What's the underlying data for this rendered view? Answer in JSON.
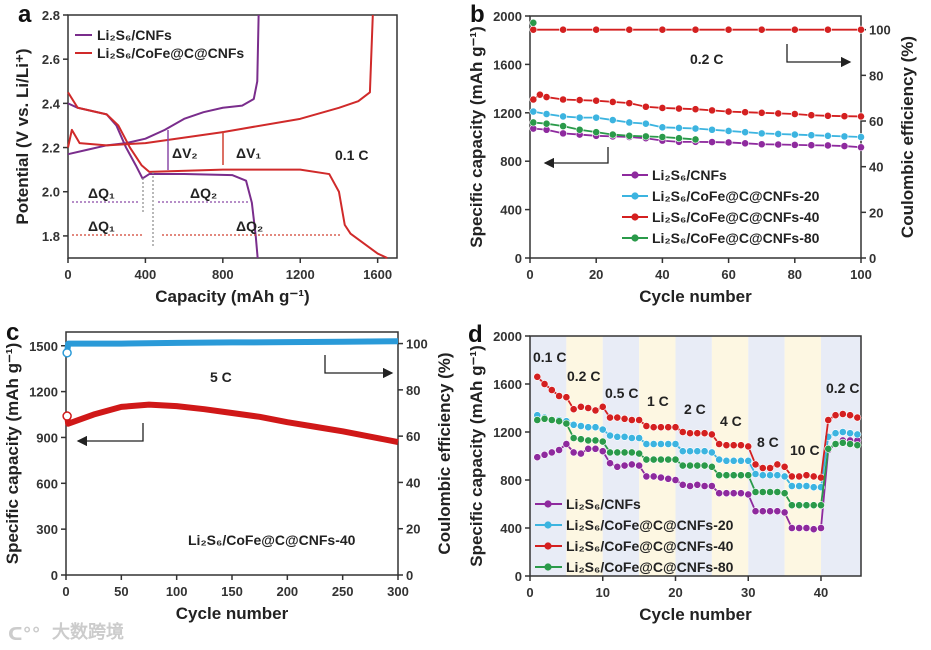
{
  "watermark": "大数跨境",
  "chart_data": [
    {
      "panel": "a",
      "type": "line",
      "xlabel": "Capacity (mAh g⁻¹)",
      "ylabel": "Potential (V vs. Li/Li⁺)",
      "xlim": [
        0,
        1700
      ],
      "ylim": [
        1.7,
        2.8
      ],
      "xticks": [
        0,
        400,
        800,
        1200,
        1600
      ],
      "xticklabels": [
        "0",
        "400",
        "800",
        "1200",
        "1600"
      ],
      "yticks": [
        1.8,
        2.0,
        2.2,
        2.4,
        2.6,
        2.8
      ],
      "yticklabels": [
        "1.8",
        "2.0",
        "2.2",
        "2.4",
        "2.6",
        "2.8"
      ],
      "legend": [
        "Li₂S₆/CNFs",
        "Li₂S₆/CoFe@C@CNFs"
      ],
      "annotations": [
        "ΔV₂",
        "ΔV₁",
        "0.1 C",
        "ΔQ₁",
        "ΔQ₂",
        "ΔQ₁",
        "ΔQ₂"
      ],
      "series": [
        {
          "name": "Li₂S₆/CNFs charge",
          "color": "#7a2d8c",
          "x": [
            0,
            100,
            200,
            300,
            400,
            500,
            600,
            700,
            800,
            900,
            960,
            978,
            985
          ],
          "y": [
            2.17,
            2.19,
            2.21,
            2.22,
            2.24,
            2.28,
            2.33,
            2.36,
            2.38,
            2.39,
            2.42,
            2.5,
            2.8
          ]
        },
        {
          "name": "Li₂S₆/CNFs discharge",
          "color": "#7a2d8c",
          "x": [
            0,
            50,
            200,
            250,
            300,
            350,
            385,
            420,
            600,
            850,
            920,
            950,
            970,
            980
          ],
          "y": [
            2.4,
            2.38,
            2.35,
            2.3,
            2.2,
            2.12,
            2.06,
            2.08,
            2.08,
            2.075,
            2.05,
            1.95,
            1.8,
            1.7
          ]
        },
        {
          "name": "Li₂S₆/CoFe@C@CNFs charge",
          "color": "#d02a2a",
          "x": [
            0,
            20,
            60,
            200,
            400,
            800,
            1200,
            1400,
            1500,
            1560,
            1575
          ],
          "y": [
            2.2,
            2.28,
            2.22,
            2.21,
            2.22,
            2.27,
            2.33,
            2.38,
            2.41,
            2.45,
            2.8
          ]
        },
        {
          "name": "Li₂S₆/CoFe@C@CNFs discharge",
          "color": "#d02a2a",
          "x": [
            0,
            50,
            200,
            260,
            320,
            380,
            420,
            800,
            1200,
            1350,
            1400,
            1430,
            1460,
            1600,
            1650
          ],
          "y": [
            2.45,
            2.38,
            2.35,
            2.3,
            2.2,
            2.12,
            2.09,
            2.1,
            2.1,
            2.08,
            2.0,
            1.85,
            1.81,
            1.72,
            1.7
          ]
        }
      ]
    },
    {
      "panel": "b",
      "type": "line",
      "xlabel": "Cycle number",
      "ylabel": "Specific capacity (mAh g⁻¹)",
      "y2label": "Coulombic efficiency (%)",
      "xlim": [
        0,
        100
      ],
      "ylim": [
        0,
        2000
      ],
      "y2lim": [
        0,
        106
      ],
      "xticks": [
        0,
        20,
        40,
        60,
        80,
        100
      ],
      "xticklabels": [
        "0",
        "20",
        "40",
        "60",
        "80",
        "100"
      ],
      "yticks": [
        0,
        400,
        800,
        1200,
        1600,
        2000
      ],
      "yticklabels": [
        "0",
        "400",
        "800",
        "1200",
        "1600",
        "2000"
      ],
      "y2ticks": [
        0,
        20,
        40,
        60,
        80,
        100
      ],
      "y2ticklabels": [
        "0",
        "20",
        "40",
        "60",
        "80",
        "100"
      ],
      "annotations": [
        "0.2 C"
      ],
      "series": [
        {
          "name": "Li₂S₆/CNFs",
          "color": "#8e2a9e",
          "axis": "left",
          "x": [
            1,
            5,
            10,
            15,
            20,
            25,
            30,
            35,
            40,
            45,
            50,
            55,
            60,
            65,
            70,
            75,
            80,
            85,
            90,
            95,
            100
          ],
          "y": [
            1070,
            1060,
            1030,
            1020,
            1010,
            1005,
            1000,
            990,
            970,
            960,
            960,
            958,
            955,
            948,
            940,
            938,
            935,
            932,
            930,
            925,
            915
          ]
        },
        {
          "name": "Li₂S₆/CoFe@C@CNFs-20",
          "color": "#3cb4e0",
          "axis": "left",
          "x": [
            1,
            5,
            10,
            15,
            20,
            25,
            30,
            35,
            40,
            45,
            50,
            55,
            60,
            65,
            70,
            75,
            80,
            85,
            90,
            95,
            100
          ],
          "y": [
            1210,
            1190,
            1170,
            1160,
            1160,
            1140,
            1120,
            1110,
            1080,
            1075,
            1070,
            1060,
            1050,
            1040,
            1030,
            1025,
            1020,
            1015,
            1010,
            1005,
            1000
          ]
        },
        {
          "name": "Li₂S₆/CoFe@C@CNFs-40",
          "color": "#d42020",
          "axis": "left",
          "x": [
            1,
            3,
            5,
            10,
            15,
            20,
            25,
            30,
            35,
            40,
            45,
            50,
            55,
            60,
            65,
            70,
            75,
            80,
            85,
            90,
            95,
            100
          ],
          "y": [
            1310,
            1350,
            1330,
            1310,
            1305,
            1300,
            1290,
            1280,
            1250,
            1240,
            1235,
            1230,
            1220,
            1210,
            1205,
            1200,
            1195,
            1190,
            1180,
            1175,
            1172,
            1170
          ]
        },
        {
          "name": "Li₂S₆/CoFe@C@CNFs-80",
          "color": "#2a9a4a",
          "axis": "left",
          "x": [
            1,
            5,
            10,
            15,
            20,
            25,
            30,
            35,
            40,
            45,
            50
          ],
          "y": [
            1120,
            1110,
            1090,
            1060,
            1040,
            1020,
            1010,
            1005,
            1000,
            990,
            980
          ]
        },
        {
          "name": "CE",
          "color": "#d42020",
          "axis": "right",
          "x": [
            1,
            10,
            20,
            30,
            40,
            50,
            60,
            70,
            80,
            90,
            100
          ],
          "y": [
            100,
            100,
            100,
            100,
            100,
            100,
            100,
            100,
            100,
            100,
            100
          ]
        },
        {
          "name": "CE-80 first",
          "color": "#2a9a4a",
          "axis": "right",
          "x": [
            1
          ],
          "y": [
            103
          ]
        }
      ]
    },
    {
      "panel": "c",
      "type": "line",
      "xlabel": "Cycle number",
      "ylabel": "Specific capacity (mAh g⁻¹)",
      "y2label": "Coulombic efficiency (%)",
      "xlim": [
        0,
        300
      ],
      "ylim": [
        0,
        1590
      ],
      "y2lim": [
        0,
        105
      ],
      "xticks": [
        0,
        50,
        100,
        150,
        200,
        250,
        300
      ],
      "xticklabels": [
        "0",
        "50",
        "100",
        "150",
        "200",
        "250",
        "300"
      ],
      "yticks": [
        0,
        300,
        600,
        900,
        1200,
        1500
      ],
      "yticklabels": [
        "0",
        "300",
        "600",
        "900",
        "1200",
        "1500"
      ],
      "y2ticks": [
        0,
        20,
        40,
        60,
        80,
        100
      ],
      "y2ticklabels": [
        "0",
        "20",
        "40",
        "60",
        "80",
        "100"
      ],
      "annotations": [
        "5 C",
        "Li₂S₆/CoFe@C@CNFs-40"
      ],
      "series": [
        {
          "name": "Capacity",
          "color": "#d01818",
          "axis": "left",
          "x": [
            1,
            2,
            25,
            50,
            75,
            100,
            125,
            150,
            175,
            200,
            225,
            250,
            275,
            300
          ],
          "y": [
            1040,
            990,
            1050,
            1100,
            1115,
            1105,
            1085,
            1060,
            1035,
            1000,
            970,
            940,
            905,
            870
          ]
        },
        {
          "name": "CE",
          "color": "#2a9ad8",
          "axis": "right",
          "x": [
            1,
            2,
            50,
            100,
            150,
            200,
            250,
            300
          ],
          "y": [
            96,
            100,
            100,
            100.3,
            100.5,
            100.6,
            100.8,
            101
          ]
        }
      ]
    },
    {
      "panel": "d",
      "type": "line",
      "xlabel": "Cycle number",
      "ylabel": "Specific capacity (mAh g⁻¹)",
      "xlim": [
        0,
        45.5
      ],
      "ylim": [
        0,
        2000
      ],
      "xticks": [
        0,
        10,
        20,
        30,
        40
      ],
      "xticklabels": [
        "0",
        "10",
        "20",
        "30",
        "40"
      ],
      "yticks": [
        0,
        400,
        800,
        1200,
        1600,
        2000
      ],
      "yticklabels": [
        "0",
        "400",
        "800",
        "1200",
        "1600",
        "2000"
      ],
      "rates": [
        "0.1 C",
        "0.2 C",
        "0.5 C",
        "1 C",
        "2 C",
        "4 C",
        "8 C",
        "10 C",
        "0.2 C"
      ],
      "series": [
        {
          "name": "Li₂S₆/CNFs",
          "color": "#8e2a9e",
          "y": [
            990,
            1010,
            1030,
            1050,
            1100,
            1030,
            1020,
            1060,
            1060,
            1040,
            940,
            910,
            920,
            930,
            920,
            830,
            830,
            820,
            810,
            800,
            760,
            750,
            760,
            750,
            750,
            690,
            690,
            690,
            690,
            680,
            540,
            540,
            540,
            540,
            530,
            400,
            400,
            400,
            390,
            400,
            1050,
            1100,
            1130,
            1130,
            1130
          ]
        },
        {
          "name": "Li₂S₆/CoFe@C@CNFs-20",
          "color": "#3cb4e0",
          "y": [
            1340,
            1320,
            1300,
            1300,
            1290,
            1260,
            1250,
            1240,
            1240,
            1220,
            1170,
            1160,
            1160,
            1150,
            1150,
            1100,
            1100,
            1100,
            1100,
            1100,
            1040,
            1040,
            1040,
            1040,
            1030,
            970,
            960,
            960,
            960,
            960,
            850,
            840,
            840,
            840,
            830,
            750,
            750,
            750,
            740,
            740,
            1160,
            1190,
            1200,
            1190,
            1180
          ]
        },
        {
          "name": "Li₂S₆/CoFe@C@CNFs-40",
          "color": "#d42020",
          "y": [
            1660,
            1600,
            1550,
            1500,
            1490,
            1390,
            1410,
            1400,
            1380,
            1410,
            1320,
            1320,
            1310,
            1300,
            1300,
            1250,
            1240,
            1240,
            1240,
            1240,
            1200,
            1190,
            1190,
            1190,
            1180,
            1100,
            1090,
            1090,
            1090,
            1080,
            930,
            900,
            900,
            930,
            910,
            830,
            830,
            840,
            830,
            820,
            1300,
            1340,
            1350,
            1340,
            1320
          ]
        },
        {
          "name": "Li₂S₆/CoFe@C@CNFs-80",
          "color": "#2a9a4a",
          "y": [
            1300,
            1310,
            1300,
            1290,
            1270,
            1150,
            1140,
            1130,
            1130,
            1120,
            1030,
            1030,
            1030,
            1030,
            1020,
            970,
            970,
            970,
            970,
            970,
            920,
            920,
            920,
            920,
            910,
            840,
            840,
            840,
            840,
            840,
            700,
            700,
            700,
            700,
            690,
            590,
            590,
            590,
            590,
            590,
            1060,
            1100,
            1110,
            1100,
            1090
          ]
        }
      ]
    }
  ]
}
